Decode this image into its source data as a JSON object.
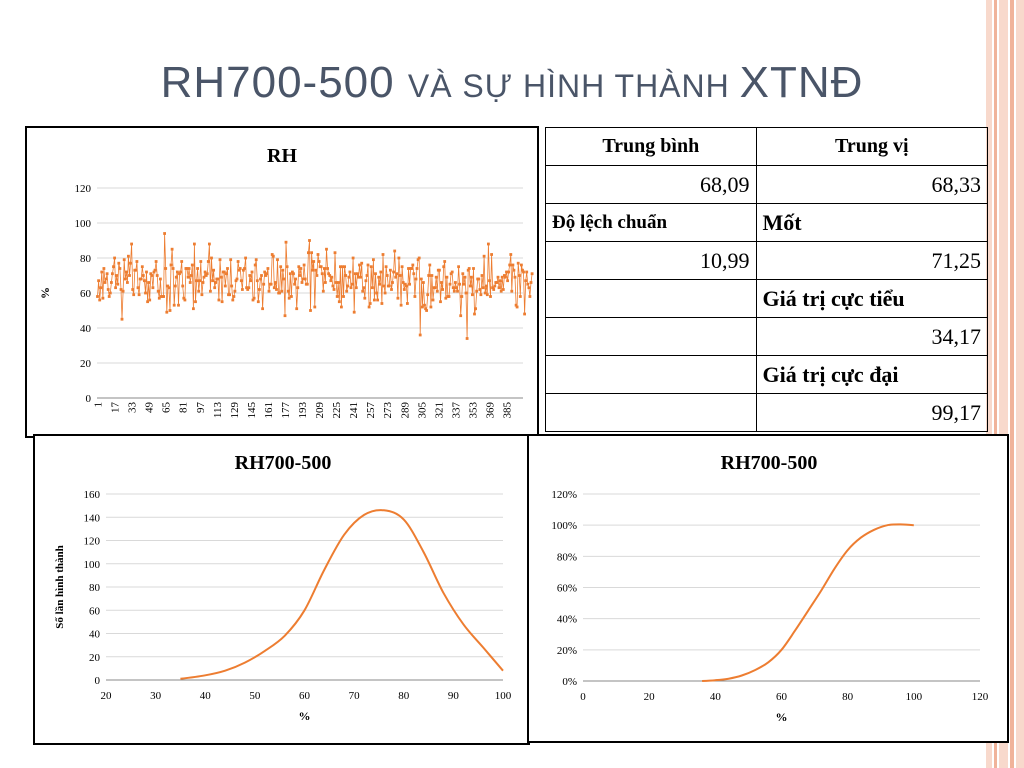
{
  "slide": {
    "title_main": "RH700-500 ",
    "title_caps": "VÀ SỰ HÌNH THÀNH ",
    "title_tail": "XTNĐ"
  },
  "stats_table": {
    "row1": [
      "Trung bình",
      "Trung vị"
    ],
    "row2": [
      "68,09",
      "68,33"
    ],
    "row3": [
      "Độ lệch chuẩn",
      "Mốt"
    ],
    "row4": [
      "10,99",
      "71,25"
    ],
    "row5": [
      "",
      "Giá trị cực tiểu"
    ],
    "row6": [
      "",
      "34,17"
    ],
    "row7": [
      "",
      "Giá trị cực đại"
    ],
    "row8": [
      "",
      "99,17"
    ]
  },
  "colors": {
    "series": "#ED7D31",
    "grid": "#D9D9D9",
    "stripe_light": "#F8D9CC",
    "stripe_dark": "#F0B39A"
  },
  "chart_data": [
    {
      "type": "line",
      "title": "RH",
      "ylabel": "%",
      "xlabel": "",
      "ylim": [
        0,
        120
      ],
      "yticks": [
        0,
        20,
        40,
        60,
        80,
        100,
        120
      ],
      "x_tick_labels": [
        "1",
        "17",
        "33",
        "49",
        "65",
        "81",
        "97",
        "113",
        "129",
        "145",
        "161",
        "177",
        "193",
        "209",
        "225",
        "241",
        "257",
        "273",
        "289",
        "305",
        "321",
        "337",
        "353",
        "369",
        "385"
      ],
      "n_points": 400,
      "markers": true,
      "stats": {
        "mean": 68.09,
        "median": 68.33,
        "std": 10.99,
        "mode": 71.25,
        "min": 34.17,
        "max": 99.17
      },
      "series": [
        {
          "values": [
            58,
            67,
            56,
            63,
            72,
            57,
            74,
            66,
            68,
            71,
            62,
            58,
            60,
            66,
            71,
            75,
            80,
            63,
            70,
            65,
            77,
            74,
            62,
            45,
            61,
            79,
            68,
            72,
            66,
            81,
            70,
            77,
            88,
            62,
            59,
            73,
            73,
            78,
            63,
            59,
            68,
            68,
            75,
            70,
            67,
            60,
            72,
            55,
            66,
            56,
            71,
            70,
            63,
            72,
            73,
            78,
            70,
            61,
            57,
            68,
            58,
            58,
            58,
            94,
            74,
            49,
            64,
            63,
            50,
            76,
            85,
            74,
            53,
            64,
            69,
            72,
            53,
            71,
            72,
            78,
            64,
            57,
            56,
            74,
            74,
            69,
            74,
            66,
            70,
            76,
            51,
            88,
            55,
            67,
            74,
            61,
            67,
            78,
            59,
            66,
            69,
            72,
            70,
            71,
            78,
            88,
            61,
            80,
            67,
            73,
            63,
            66,
            68,
            68,
            56,
            79,
            69,
            55,
            72,
            72,
            64,
            71,
            74,
            59,
            59,
            79,
            64,
            56,
            58,
            61,
            67,
            68,
            78,
            73,
            74,
            67,
            62,
            73,
            74,
            80,
            63,
            62,
            63,
            70,
            67,
            72,
            56,
            57,
            76,
            79,
            67,
            55,
            62,
            68,
            70,
            51,
            65,
            72,
            70,
            71,
            74,
            61,
            65,
            65,
            82,
            81,
            63,
            66,
            62,
            79,
            60,
            60,
            75,
            61,
            73,
            68,
            47,
            89,
            75,
            61,
            57,
            71,
            58,
            72,
            71,
            65,
            68,
            51,
            63,
            75,
            70,
            74,
            66,
            68,
            76,
            68,
            65,
            65,
            83,
            90,
            50,
            83,
            73,
            78,
            52,
            73,
            70,
            82,
            78,
            75,
            75,
            71,
            61,
            74,
            66,
            85,
            74,
            71,
            70,
            67,
            69,
            64,
            62,
            83,
            66,
            58,
            66,
            55,
            75,
            52,
            75,
            58,
            75,
            70,
            61,
            64,
            69,
            72,
            63,
            65,
            80,
            49,
            71,
            63,
            71,
            69,
            76,
            69,
            77,
            61,
            63,
            57,
            67,
            70,
            76,
            52,
            54,
            75,
            63,
            79,
            56,
            71,
            60,
            56,
            69,
            65,
            72,
            54,
            82,
            64,
            60,
            75,
            70,
            64,
            64,
            73,
            62,
            66,
            72,
            84,
            69,
            71,
            57,
            80,
            70,
            53,
            75,
            66,
            62,
            65,
            64,
            54,
            74,
            65,
            74,
            74,
            76,
            71,
            58,
            68,
            74,
            79,
            80,
            36,
            68,
            52,
            66,
            53,
            51,
            50,
            59,
            70,
            76,
            52,
            70,
            56,
            63,
            63,
            69,
            61,
            73,
            73,
            55,
            66,
            62,
            75,
            78,
            57,
            69,
            58,
            58,
            65,
            71,
            72,
            63,
            61,
            66,
            63,
            61,
            75,
            65,
            47,
            58,
            71,
            65,
            69,
            60,
            34,
            73,
            74,
            64,
            69,
            59,
            74,
            48,
            51,
            61,
            68,
            68,
            62,
            59,
            70,
            63,
            81,
            60,
            64,
            59,
            88,
            67,
            58,
            82,
            63,
            62,
            64,
            66,
            66,
            69,
            63,
            67,
            61,
            69,
            62,
            70,
            69,
            72,
            67,
            72,
            76,
            82,
            61,
            76,
            73,
            69,
            53,
            52,
            77,
            70,
            58,
            76,
            73,
            72,
            48,
            67,
            72,
            65,
            63,
            58,
            66,
            71
          ]
        }
      ]
    },
    {
      "type": "line",
      "title": "RH700-500",
      "xlabel": "%",
      "ylabel": "Số lần hình thành",
      "xlim": [
        20,
        100
      ],
      "ylim": [
        0,
        160
      ],
      "xticks": [
        20,
        30,
        40,
        50,
        60,
        70,
        80,
        90,
        100
      ],
      "yticks": [
        0,
        20,
        40,
        60,
        80,
        100,
        120,
        140,
        160
      ],
      "series": [
        {
          "x": [
            35,
            40,
            44,
            48,
            52,
            56,
            60,
            64,
            68,
            72,
            76,
            80,
            84,
            88,
            92,
            96,
            100
          ],
          "values": [
            1,
            4,
            8,
            15,
            25,
            38,
            60,
            95,
            125,
            142,
            146,
            138,
            110,
            75,
            48,
            28,
            8
          ]
        }
      ]
    },
    {
      "type": "line",
      "title": "RH700-500",
      "xlabel": "%",
      "ylabel": "",
      "xlim": [
        0,
        120
      ],
      "ylim": [
        0,
        120
      ],
      "xticks": [
        0,
        20,
        40,
        60,
        80,
        100,
        120
      ],
      "yticks": [
        0,
        20,
        40,
        60,
        80,
        100,
        120
      ],
      "ytick_labels": [
        "0%",
        "20%",
        "40%",
        "60%",
        "80%",
        "100%",
        "120%"
      ],
      "series": [
        {
          "x": [
            36,
            40,
            44,
            48,
            52,
            56,
            60,
            64,
            68,
            72,
            76,
            80,
            84,
            88,
            92,
            96,
            100
          ],
          "values": [
            0,
            0.5,
            1.5,
            3.5,
            7,
            12,
            20,
            32,
            45,
            58,
            72,
            84,
            92,
            97,
            100,
            100.5,
            100
          ]
        }
      ]
    }
  ]
}
